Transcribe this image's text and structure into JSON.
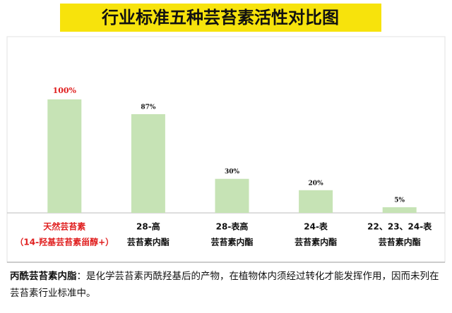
{
  "chart_data": {
    "type": "bar",
    "title": "行业标准五种芸苔素活性对比图",
    "categories": [
      [
        "天然芸苔素",
        "（14-羟基芸苔素甾醇+）"
      ],
      [
        "28-高",
        "芸苔素内酯"
      ],
      [
        "28-表高",
        "芸苔素内酯"
      ],
      [
        "24-表",
        "芸苔素内酯"
      ],
      [
        "22、23、24-表",
        "芸苔素内酯"
      ]
    ],
    "values": [
      100,
      87,
      30,
      20,
      5
    ],
    "value_labels": [
      "100%",
      "87%",
      "30%",
      "20%",
      "5%"
    ],
    "color": "#c6e3b5",
    "label_colors": [
      "#e02020",
      "#111111",
      "#111111",
      "#111111",
      "#111111"
    ],
    "ylim": [
      0,
      100
    ]
  },
  "note": {
    "term": "丙酰芸苔素内脂",
    "text": "：是化学芸苔素丙酰羟基后的产物，在植物体内须经过转化才能发挥作用，因而未列在芸苔素行业标准中。"
  }
}
